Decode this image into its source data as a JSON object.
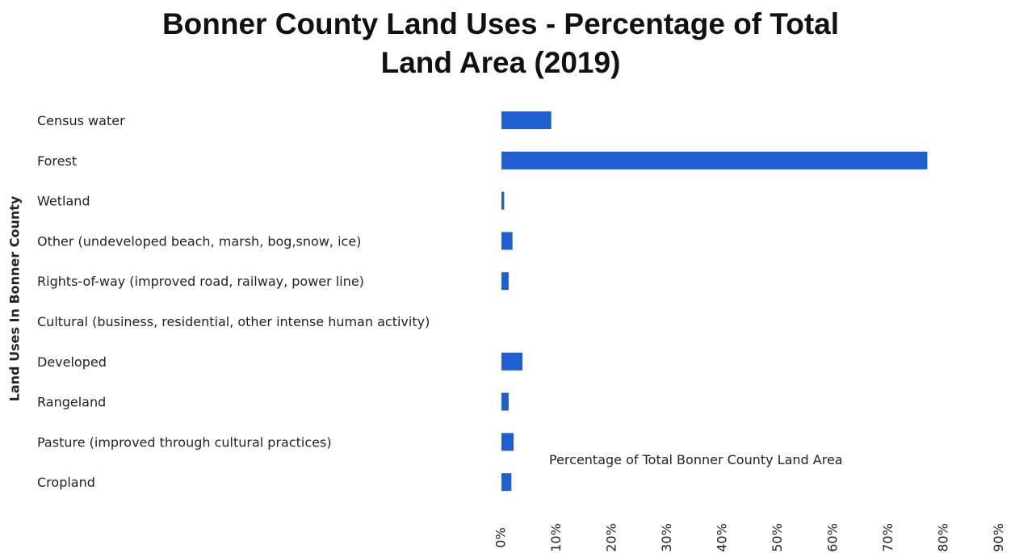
{
  "chart_data": {
    "type": "bar",
    "orientation": "horizontal",
    "title": "Bonner County Land Uses - Percentage of Total Land Area (2019)",
    "title_lines": [
      "Bonner County Land Uses - Percentage of Total",
      "Land Area (2019)"
    ],
    "ylabel": "Land Uses In Bonner County",
    "xlabel": "Percentage of Total Bonner County Land Area",
    "categories": [
      "Census water",
      "Forest",
      "Wetland",
      "Other (undeveloped beach, marsh, bog,snow, ice)",
      "Rights-of-way (improved road, railway, power line)",
      "Cultural (business, residential, other intense human activity)",
      "Developed",
      "Rangeland",
      "Pasture (improved through cultural practices)",
      "Cropland"
    ],
    "values": [
      9.0,
      77.0,
      0.5,
      2.0,
      1.3,
      0,
      3.8,
      1.3,
      2.2,
      1.8
    ],
    "xlim": [
      0,
      90
    ],
    "xticks": [
      "0%",
      "10%",
      "20%",
      "30%",
      "40%",
      "50%",
      "60%",
      "70%",
      "80%",
      "90%"
    ],
    "bar_color": "#1f5fd1",
    "grid": false,
    "legend": "none"
  }
}
